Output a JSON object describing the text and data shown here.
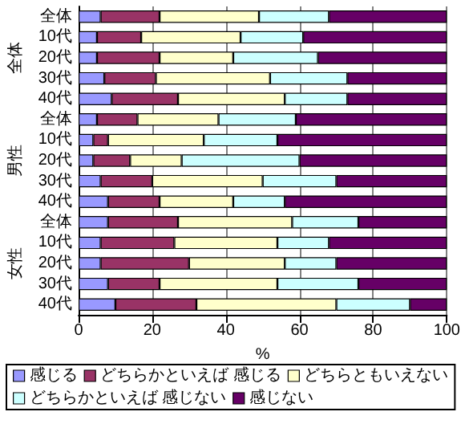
{
  "chart_data": {
    "type": "bar",
    "orientation": "horizontal",
    "stacked": true,
    "xlabel": "%",
    "categories": [
      "全体",
      "10代",
      "20代",
      "30代",
      "40代",
      "全体",
      "10代",
      "20代",
      "30代",
      "40代",
      "全体",
      "10代",
      "20代",
      "30代",
      "40代"
    ],
    "annotations": [
      "全体",
      "男性",
      "女性"
    ],
    "series": [
      {
        "name": "感じる",
        "color": "#9999ff",
        "values": [
          6,
          5,
          5,
          7,
          9,
          5,
          4,
          4,
          6,
          8,
          8,
          6,
          6,
          8,
          10
        ]
      },
      {
        "name": "どちらかといえば 感じる",
        "color": "#993366",
        "values": [
          16,
          12,
          17,
          14,
          18,
          11,
          4,
          10,
          14,
          14,
          19,
          20,
          24,
          14,
          22
        ]
      },
      {
        "name": "どちらともいえない",
        "color": "#ffffcc",
        "values": [
          27,
          27,
          20,
          31,
          29,
          22,
          26,
          14,
          30,
          20,
          31,
          28,
          26,
          32,
          38
        ]
      },
      {
        "name": "どちらかといえば 感じない",
        "color": "#ccffff",
        "values": [
          19,
          17,
          23,
          21,
          17,
          21,
          20,
          32,
          20,
          14,
          18,
          14,
          14,
          22,
          20
        ]
      },
      {
        "name": "感じない",
        "color": "#660066",
        "values": [
          32,
          39,
          35,
          27,
          27,
          41,
          46,
          40,
          30,
          44,
          24,
          32,
          30,
          24,
          10
        ]
      }
    ],
    "xlim": [
      0,
      100
    ],
    "xticks": [
      0,
      20,
      40,
      60,
      80,
      100
    ],
    "grid": "x",
    "legend": "bottom"
  }
}
